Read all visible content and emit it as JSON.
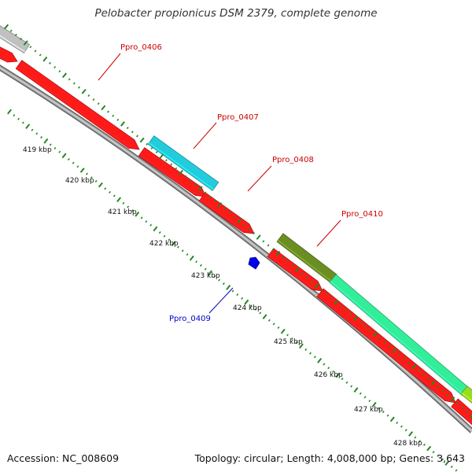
{
  "title": "Pelobacter propionicus DSM 2379, complete genome",
  "footer": {
    "accession": "Accession: NC_008609",
    "summary": "Topology: circular; Length: 4,008,000 bp; Genes: 3,643"
  },
  "ticks": [
    "419 kbp",
    "420 kbp",
    "421 kbp",
    "422 kbp",
    "423 kbp",
    "424 kbp",
    "425 kbp",
    "426 kbp",
    "427 kbp",
    "428 kbp"
  ],
  "gene_labels": [
    {
      "name": "Ppro_0406",
      "color": "#cc0000"
    },
    {
      "name": "Ppro_0407",
      "color": "#cc0000"
    },
    {
      "name": "Ppro_0408",
      "color": "#cc0000"
    },
    {
      "name": "Ppro_0409",
      "color": "#0000cc"
    },
    {
      "name": "Ppro_0410",
      "color": "#cc0000"
    }
  ],
  "colors": {
    "gene": "#ff1a1a",
    "cds_cyan": "#22ccdd",
    "cds_olive": "#6b8e23",
    "cds_spring": "#33ee99",
    "cds_lime": "#99dd22",
    "cds_grey": "#c0c0c0",
    "misc_blue": "#0000ee",
    "backbone": "#999999",
    "tick": "#228822"
  }
}
